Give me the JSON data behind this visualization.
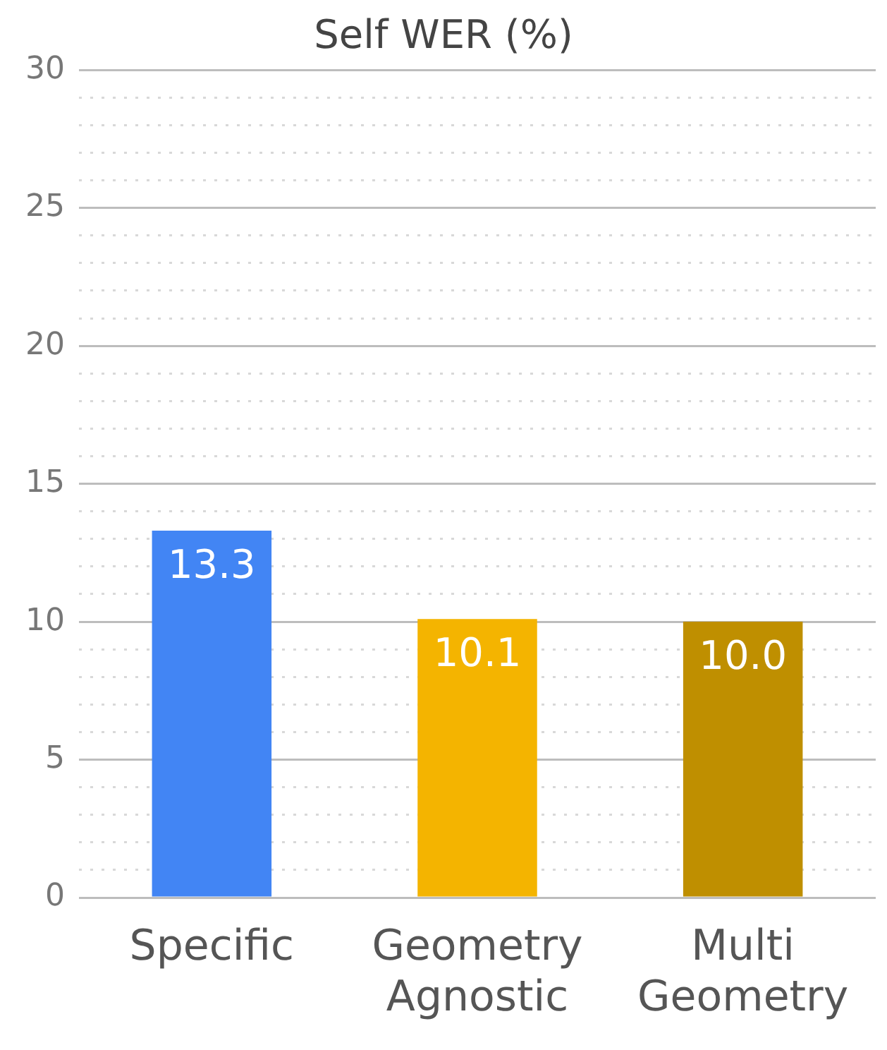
{
  "chart_data": {
    "type": "bar",
    "title": "Self WER (%)",
    "categories": [
      "Specific",
      "Geometry Agnostic",
      "Multi Geometry"
    ],
    "values": [
      13.3,
      10.1,
      10.0
    ],
    "colors": [
      "#4285f4",
      "#f4b400",
      "#bf8f00"
    ],
    "value_labels": [
      "13.3",
      "10.1",
      "10.0"
    ],
    "ylim": [
      0,
      30
    ],
    "yticks": [
      0,
      {
        "value": 1,
        "label": null
      },
      {
        "value": 2,
        "label": null
      },
      {
        "value": 3,
        "label": null
      },
      {
        "value": 4,
        "label": null
      },
      5,
      {
        "value": 6,
        "label": null
      },
      {
        "value": 7,
        "label": null
      },
      {
        "value": 8,
        "label": null
      },
      {
        "value": 9,
        "label": null
      },
      10,
      {
        "value": 11,
        "label": null
      },
      {
        "value": 12,
        "label": null
      },
      {
        "value": 13,
        "label": null
      },
      {
        "value": 14,
        "label": null
      },
      15,
      {
        "value": 16,
        "label": null
      },
      {
        "value": 17,
        "label": null
      },
      {
        "value": 18,
        "label": null
      },
      {
        "value": 19,
        "label": null
      },
      20,
      {
        "value": 21,
        "label": null
      },
      {
        "value": 22,
        "label": null
      },
      {
        "value": 23,
        "label": null
      },
      {
        "value": 24,
        "label": null
      },
      25,
      {
        "value": 26,
        "label": null
      },
      {
        "value": 27,
        "label": null
      },
      {
        "value": 28,
        "label": null
      },
      {
        "value": 29,
        "label": null
      },
      30
    ],
    "grid": "y",
    "legend": false
  }
}
